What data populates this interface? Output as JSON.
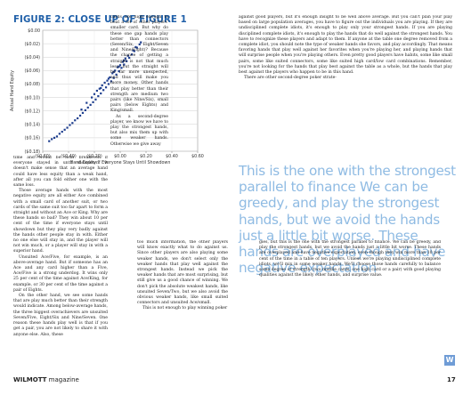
{
  "figure": {
    "title": "FIGURE 2: CLOSE UP OF FIGURE 1"
  },
  "chart_data": {
    "type": "scatter",
    "title": "FIGURE 2: CLOSE UP OF FIGURE 1",
    "xlabel": "Hand Equity If Everyone Stays Until Showdown",
    "ylabel": "Actual Hand Equity",
    "xlim": [
      -0.6,
      0.6
    ],
    "ylim": [
      -0.18,
      0.0
    ],
    "xticks": [
      "($0.60)",
      "($0.40)",
      "($0.20)",
      "$0.00",
      "$0.20",
      "$0.40",
      "$0.60"
    ],
    "yticks": [
      "$0.00",
      "($0.02)",
      "($0.04)",
      "($0.06)",
      "($0.08)",
      "($0.10)",
      "($0.12)",
      "($0.14)",
      "($0.16)",
      "($0.18)"
    ],
    "grid": true,
    "x": [
      -0.55,
      -0.53,
      -0.51,
      -0.49,
      -0.47,
      -0.45,
      -0.43,
      -0.41,
      -0.39,
      -0.37,
      -0.35,
      -0.33,
      -0.31,
      -0.29,
      -0.27,
      -0.25,
      -0.23,
      -0.21,
      -0.19,
      -0.17,
      -0.15,
      -0.13,
      -0.11,
      -0.09,
      -0.07,
      -0.05,
      -0.03,
      -0.01,
      0.01,
      0.03,
      0.05,
      0.07,
      0.09,
      0.11,
      0.13,
      0.15,
      -0.2,
      -0.18,
      -0.16,
      -0.14,
      -0.12,
      -0.1,
      -0.08,
      -0.06,
      -0.04,
      -0.02,
      0.0,
      0.02,
      0.04,
      -0.3,
      -0.26,
      -0.22,
      -0.15,
      -0.09,
      -0.05,
      -0.01,
      0.03,
      0.06,
      0.1,
      0.12,
      0.16
    ],
    "y": [
      -0.165,
      -0.162,
      -0.16,
      -0.158,
      -0.154,
      -0.151,
      -0.148,
      -0.145,
      -0.141,
      -0.138,
      -0.134,
      -0.131,
      -0.127,
      -0.123,
      -0.119,
      -0.115,
      -0.111,
      -0.107,
      -0.103,
      -0.098,
      -0.094,
      -0.089,
      -0.085,
      -0.08,
      -0.076,
      -0.071,
      -0.066,
      -0.061,
      -0.056,
      -0.051,
      -0.046,
      -0.041,
      -0.036,
      -0.031,
      -0.026,
      -0.021,
      -0.095,
      -0.09,
      -0.087,
      -0.082,
      -0.078,
      -0.075,
      -0.07,
      -0.064,
      -0.06,
      -0.055,
      -0.052,
      -0.047,
      -0.042,
      -0.118,
      -0.108,
      -0.1,
      -0.086,
      -0.072,
      -0.062,
      -0.054,
      -0.045,
      -0.038,
      -0.03,
      -0.025,
      -0.018
    ]
  },
  "columns": {
    "c2_top": [
      "cards are high enough to beat a lot of other players' smaller card. But why do these one gap hands play better than connectors (Seven/Six, Eight/Seven and Nine/Eight)? Because the chance of getting a straight is not that much less, but the straight will be far more unexpected, and thus will make you more money. Other hands that play better than their strength are medium two pairs (like Nine/Six), small pairs (below Eights) and King/small.",
      "As a second-degree player, we know we have to play the strongest hands, but also mix them up with some weaker hands. Otherwise we give away"
    ],
    "c3_top": [
      "against good players, but it's enough insight to be well above average. But you can't plan your play based on large population averages, you have to figure out the individuals you are playing. If they are undisciplined complete idiots, it's enough to play only your strongest hands. If you are playing disciplined complete idiots, it's enough to play the hands that do well against the strongest hands. You have to recognize these players and adapt to them. If anyone at the table one degree removed from a complete idiot, you should note the type of weaker hands she favors, and play accordingly. That means favoring hands that play well against her favorites when you're playing her, and playing hands that will surprise people when you're playing others. Even pretty good players have habits, some like small pairs, some like suited connectors, some like suited high card/low card combinations. Remember, you're not looking for the hands that play best against the table as a whole, but the hands that play best against the players who happen to be in this hand.",
      "There are other second-degree poker strate-"
    ],
    "c1": [
      "time and would be near breakeven if everyone stayed in until showdown. It doesn't make sense that an average hand could have less equity than a weak hand, after all you can fold either one with the same loss.",
      "Those average hands with the most negative equity are all either Ace combined with a small card of another suit, or two cards of the same suit too far apart to form a straight and without an Ace or King. Why are these hands so bad? They win about 10 per cent of the time if everyone stays until showdown but they play very badly against the hands other people stay in with. Either no one else will stay in, and the player will not win much, or a player will stay in with a superior hand.",
      "Unsuited Ace/Five, for example, is an above-average hand. But if someone has an Ace and any card higher than a Five, Ace/Five is a strong underdog. It wins only 25 per cent of the time against Ace/King, for example, or 30 per cent of the time against a pair of Eights.",
      "On the other hand, we see some hands that are play much better than their strength would indicate. Among below-average hands, the three biggest overachievers are unsuited Seven/Five, Eight/Six and Nine/Seven. One reason these hands play well is that if you get a pair, you are not likely to share it with anyone else. Also, these"
    ],
    "c2_bottom": [
      "too much information, the other players will know exactly what to do against us. Since other players are also playing some weaker hands, we don't select only the weaker hands that play well against the strongest hands. Instead we pick the weaker hands that are most surprising, but still give us a good chance of winning. We don't pick the absolute weakest hands, like unsuited Seven/Two, but we also avoid the obvious weaker hands, like small suited connectors and unsuited Ace/small.",
      "This is not enough to play winning poker"
    ],
    "c3_bottom": [
      "gies, but this is the one with the strongest parallel to finance. We can be greedy, and play the strongest hands, but we avoid the hands just a little bit worse. These hands are overplayed and have negative expectation, even though they win more than 10 per cent of the time in a table of ten players. Unless we're playing undisciplined complete idiots, we'll mix in some weaker hands. We'll choose those hands carefully to balance some degree of strength (two middle cards, one high card or a pair) with good playing qualities against the likely other hands, and surprise value."
    ]
  },
  "pullquote": "This is the one with the strongest parallel to finance We can be greedy, and play the strongest hands, but we avoid the hands just a little bit worse. These   hands are overplayed and have negative expectation",
  "footer": {
    "brand": "WILMOTT",
    "section": "magazine",
    "page_number": "17",
    "badge": "W"
  }
}
